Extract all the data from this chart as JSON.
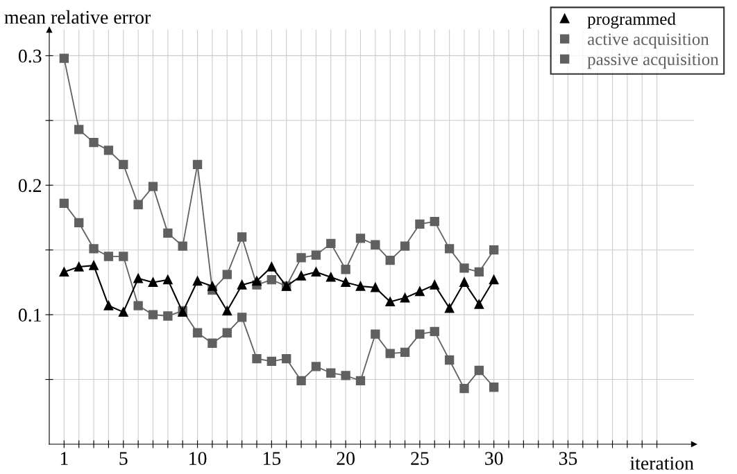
{
  "chart_data": {
    "type": "line",
    "xlabel": "iteration",
    "ylabel": "mean relative error",
    "x": [
      1,
      2,
      3,
      4,
      5,
      6,
      7,
      8,
      9,
      10,
      11,
      12,
      13,
      14,
      15,
      16,
      17,
      18,
      19,
      20,
      21,
      22,
      23,
      24,
      25,
      26,
      27,
      28,
      29,
      30
    ],
    "series": [
      {
        "name": "programmed",
        "color": "#000000",
        "marker": "triangle",
        "values": [
          0.133,
          0.137,
          0.138,
          0.107,
          0.102,
          0.128,
          0.125,
          0.127,
          0.102,
          0.126,
          0.122,
          0.103,
          0.123,
          0.126,
          0.137,
          0.122,
          0.13,
          0.133,
          0.129,
          0.125,
          0.122,
          0.121,
          0.11,
          0.113,
          0.118,
          0.123,
          0.105,
          0.125,
          0.108,
          0.127
        ]
      },
      {
        "name": "active acquisition",
        "color": "#606060",
        "marker": "square",
        "values": [
          0.298,
          0.243,
          0.233,
          0.227,
          0.216,
          0.185,
          0.199,
          0.163,
          0.153,
          0.216,
          0.119,
          0.131,
          0.16,
          0.123,
          0.127,
          0.122,
          0.144,
          0.146,
          0.155,
          0.135,
          0.159,
          0.154,
          0.142,
          0.153,
          0.17,
          0.172,
          0.151,
          0.136,
          0.133,
          0.15
        ]
      },
      {
        "name": "passive acquisition",
        "color": "#606060",
        "marker": "square",
        "values": [
          0.186,
          0.171,
          0.151,
          0.145,
          0.145,
          0.107,
          0.1,
          0.099,
          0.103,
          0.086,
          0.078,
          0.086,
          0.098,
          0.066,
          0.064,
          0.066,
          0.049,
          0.06,
          0.055,
          0.053,
          0.049,
          0.085,
          0.07,
          0.071,
          0.085,
          0.087,
          0.065,
          0.043,
          0.057,
          0.044
        ]
      }
    ],
    "xlim": [
      0,
      43.5
    ],
    "xticks": [
      1,
      {
        "value": 2,
        "label": null
      },
      {
        "value": 3,
        "label": null
      },
      {
        "value": 4,
        "label": null
      },
      5,
      {
        "value": 6,
        "label": null
      },
      {
        "value": 7,
        "label": null
      },
      {
        "value": 8,
        "label": null
      },
      {
        "value": 9,
        "label": null
      },
      10,
      {
        "value": 11,
        "label": null
      },
      {
        "value": 12,
        "label": null
      },
      {
        "value": 13,
        "label": null
      },
      {
        "value": 14,
        "label": null
      },
      15,
      {
        "value": 16,
        "label": null
      },
      {
        "value": 17,
        "label": null
      },
      {
        "value": 18,
        "label": null
      },
      {
        "value": 19,
        "label": null
      },
      20,
      {
        "value": 21,
        "label": null
      },
      {
        "value": 22,
        "label": null
      },
      {
        "value": 23,
        "label": null
      },
      {
        "value": 24,
        "label": null
      },
      25,
      {
        "value": 26,
        "label": null
      },
      {
        "value": 27,
        "label": null
      },
      {
        "value": 28,
        "label": null
      },
      {
        "value": 29,
        "label": null
      },
      30,
      {
        "value": 31,
        "label": null
      },
      {
        "value": 32,
        "label": null
      },
      {
        "value": 33,
        "label": null
      },
      {
        "value": 34,
        "label": null
      },
      35,
      {
        "value": 36,
        "label": null
      },
      {
        "value": 37,
        "label": null
      },
      {
        "value": 38,
        "label": null
      },
      {
        "value": 39,
        "label": null
      },
      {
        "value": 40,
        "label": null
      },
      {
        "value": 41,
        "label": null
      }
    ],
    "ylim": [
      0,
      0.32
    ],
    "yticks": [
      {
        "value": 0.05,
        "label": null
      },
      0.1,
      {
        "value": 0.15,
        "label": null
      },
      0.2,
      {
        "value": 0.25,
        "label": null
      },
      0.3
    ],
    "grid": true,
    "legend": "top right",
    "line_style": "solid"
  }
}
